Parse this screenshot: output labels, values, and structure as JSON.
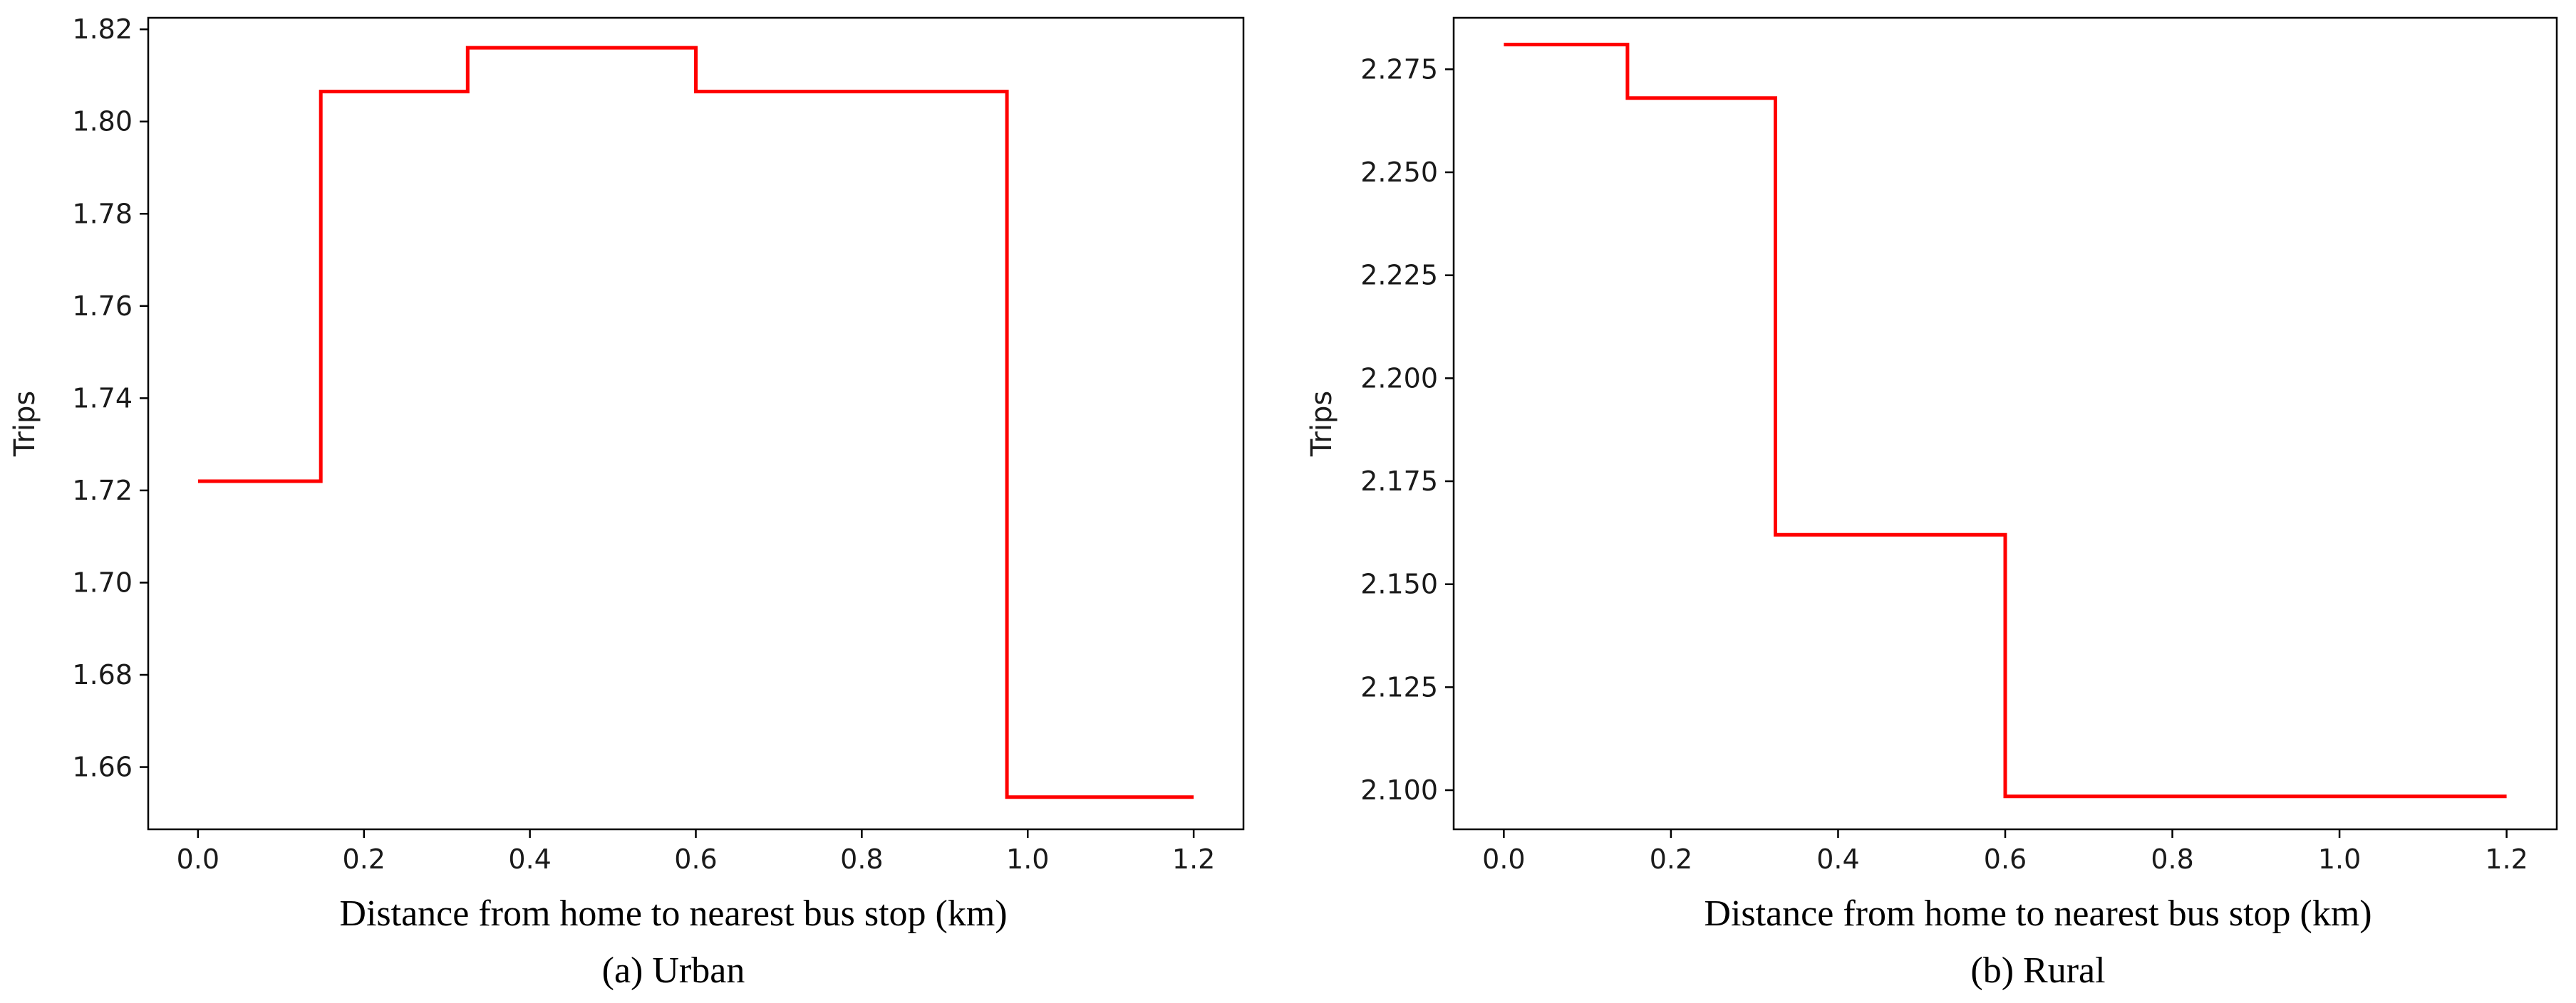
{
  "chart_data": [
    {
      "type": "line",
      "step": true,
      "caption": "(a) Urban",
      "title": "",
      "xlabel": "Distance from home to nearest bus stop (km)",
      "ylabel": "Trips",
      "xlim": [
        -0.06,
        1.26
      ],
      "ylim": [
        1.6465,
        1.8225
      ],
      "xticks": [
        0.0,
        0.2,
        0.4,
        0.6,
        0.8,
        1.0,
        1.2
      ],
      "xtick_labels": [
        "0.0",
        "0.2",
        "0.4",
        "0.6",
        "0.8",
        "1.0",
        "1.2"
      ],
      "yticks": [
        1.66,
        1.68,
        1.7,
        1.72,
        1.74,
        1.76,
        1.78,
        1.8,
        1.82
      ],
      "ytick_labels": [
        "1.66",
        "1.68",
        "1.70",
        "1.72",
        "1.74",
        "1.76",
        "1.78",
        "1.80",
        "1.82"
      ],
      "grid": false,
      "series": [
        {
          "color": "#ff0000",
          "x": [
            0.0,
            0.148,
            0.148,
            0.325,
            0.325,
            0.6,
            0.6,
            0.975,
            0.975,
            1.2
          ],
          "y": [
            1.722,
            1.722,
            1.8065,
            1.8065,
            1.816,
            1.816,
            1.8065,
            1.8065,
            1.6535,
            1.6535
          ]
        }
      ]
    },
    {
      "type": "line",
      "step": true,
      "caption": "(b) Rural",
      "title": "",
      "xlabel": "Distance from home to nearest bus stop (km)",
      "ylabel": "Trips",
      "xlim": [
        -0.06,
        1.26
      ],
      "ylim": [
        2.0905,
        2.2875
      ],
      "xticks": [
        0.0,
        0.2,
        0.4,
        0.6,
        0.8,
        1.0,
        1.2
      ],
      "xtick_labels": [
        "0.0",
        "0.2",
        "0.4",
        "0.6",
        "0.8",
        "1.0",
        "1.2"
      ],
      "yticks": [
        2.1,
        2.125,
        2.15,
        2.175,
        2.2,
        2.225,
        2.25,
        2.275
      ],
      "ytick_labels": [
        "2.100",
        "2.125",
        "2.150",
        "2.175",
        "2.200",
        "2.225",
        "2.250",
        "2.275"
      ],
      "grid": false,
      "series": [
        {
          "color": "#ff0000",
          "x": [
            0.0,
            0.148,
            0.148,
            0.325,
            0.325,
            0.6,
            0.6,
            1.2
          ],
          "y": [
            2.281,
            2.281,
            2.268,
            2.268,
            2.162,
            2.162,
            2.0985,
            2.0985
          ]
        }
      ]
    }
  ]
}
